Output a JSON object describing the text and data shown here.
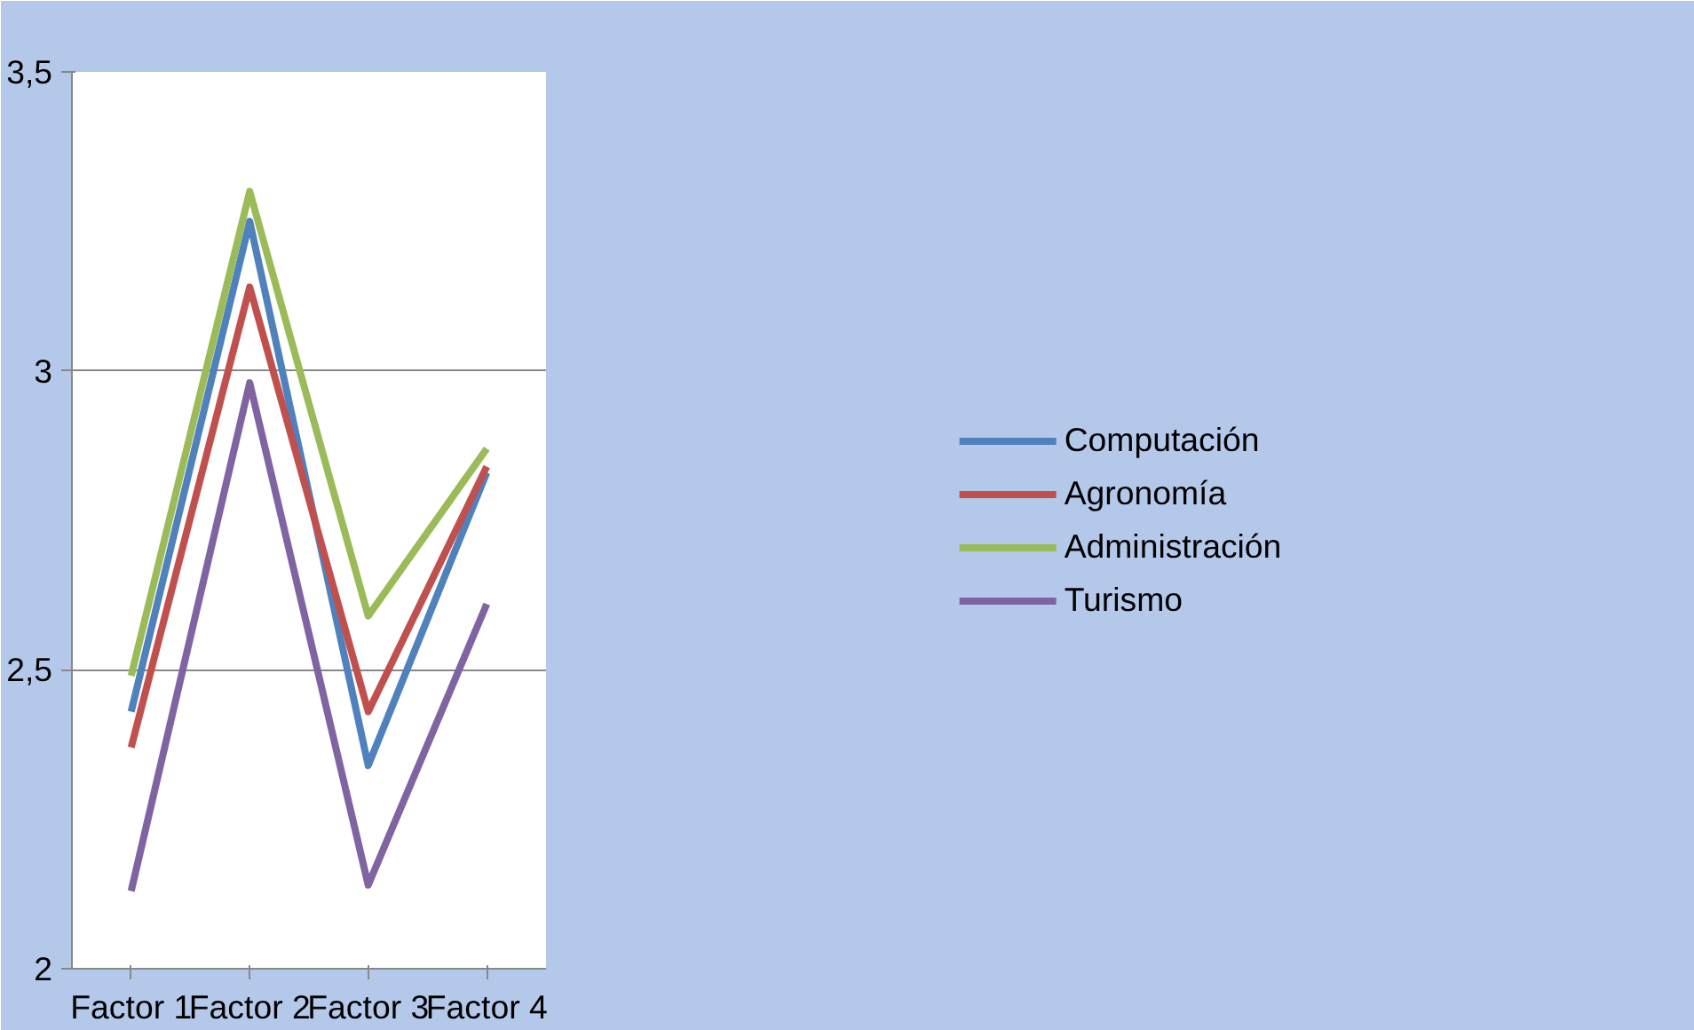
{
  "chart_data": {
    "type": "line",
    "categories": [
      "Factor 1",
      "Factor 2",
      "Factor 3",
      "Factor 4"
    ],
    "series": [
      {
        "name": "Computación",
        "color": "#4f81bd",
        "values": [
          2.43,
          3.25,
          2.34,
          2.83
        ]
      },
      {
        "name": "Agronomía",
        "color": "#c0504d",
        "values": [
          2.37,
          3.14,
          2.43,
          2.84
        ]
      },
      {
        "name": "Administración",
        "color": "#9bbb59",
        "values": [
          2.49,
          3.3,
          2.59,
          2.87
        ]
      },
      {
        "name": "Turismo",
        "color": "#8064a2",
        "values": [
          2.13,
          2.98,
          2.14,
          2.61
        ]
      }
    ],
    "ylim": [
      2,
      3.5
    ],
    "yticks": [
      2,
      {
        "value": 2.5,
        "label": "2,5"
      },
      3,
      {
        "value": 3.5,
        "label": "3,5"
      }
    ],
    "grid": "y",
    "legend": "right",
    "marker": "none",
    "line_style": "solid"
  }
}
